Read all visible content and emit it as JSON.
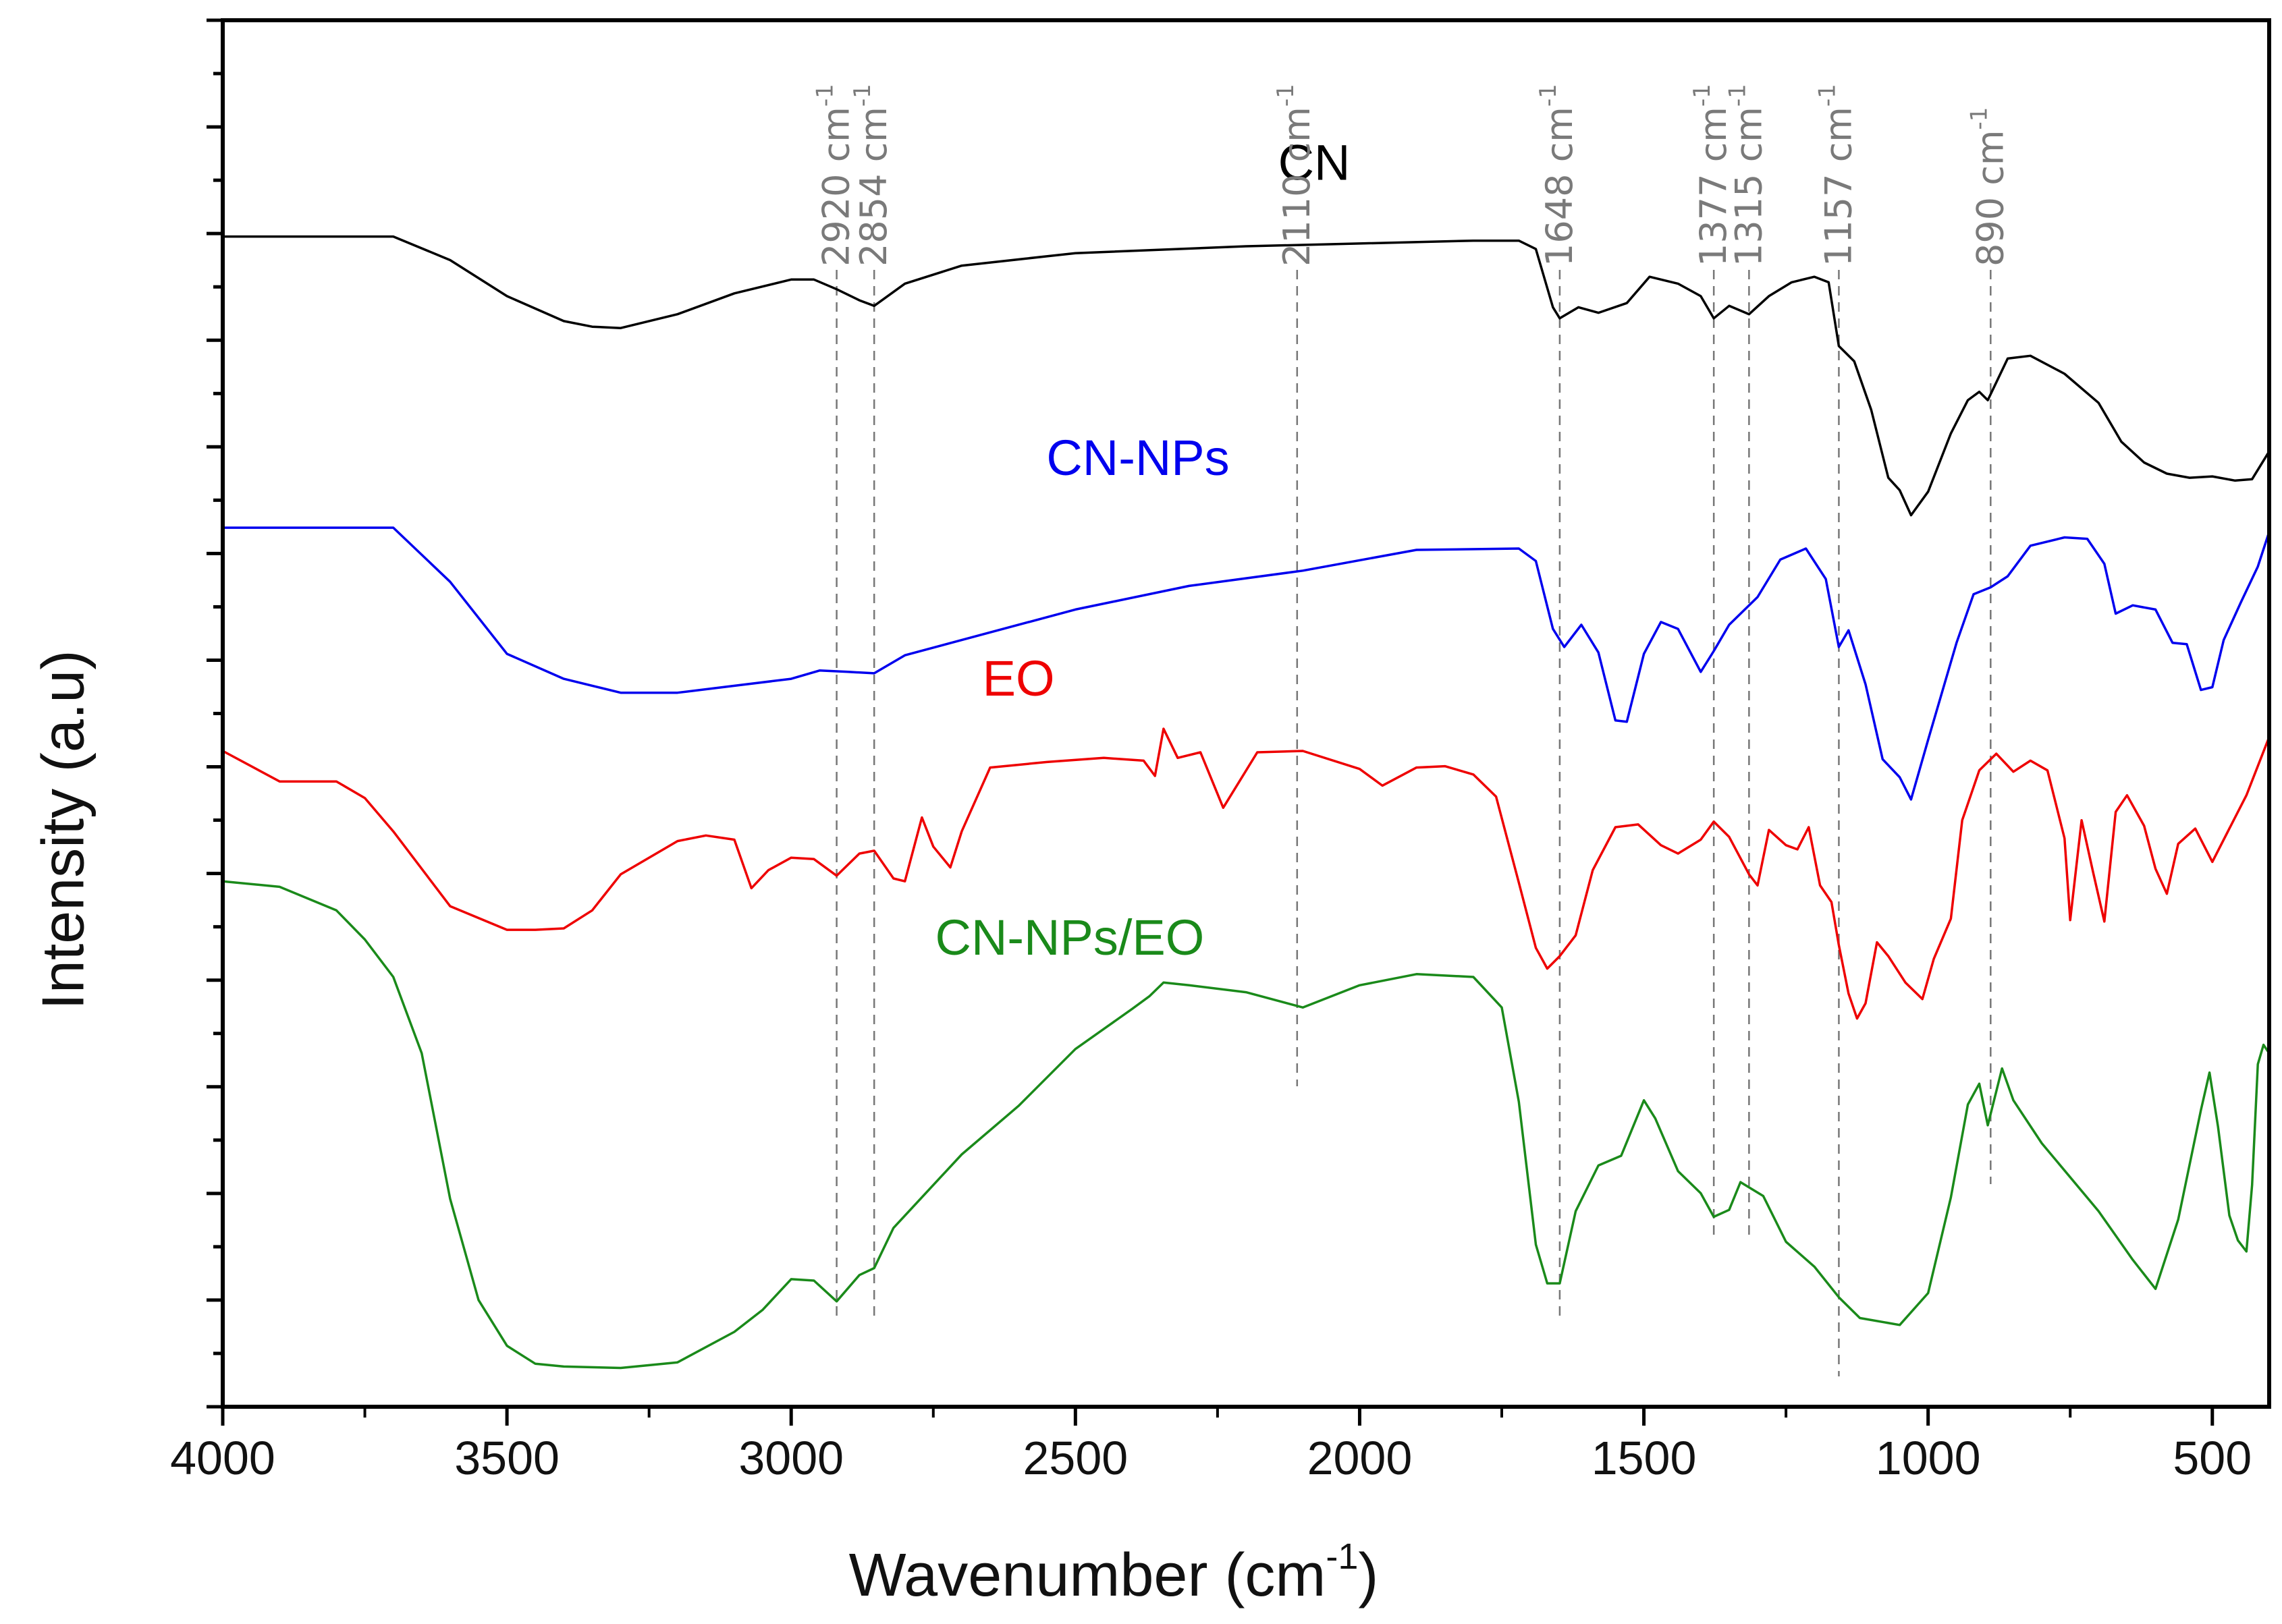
{
  "chart_data": {
    "type": "line",
    "title": "",
    "xlabel": "Wavenumber (cm",
    "xlabel_sup": "-1",
    "xlabel_close": ")",
    "ylabel": "Intensity (a.u)",
    "xlim": [
      4000,
      400
    ],
    "ylim": [
      0,
      100
    ],
    "x_ticks": [
      4000,
      3500,
      3000,
      2500,
      2000,
      1500,
      1000,
      500
    ],
    "x_tick_labels": [
      "4000",
      "3500",
      "3000",
      "2500",
      "2000",
      "1500",
      "1000",
      "500"
    ],
    "y_ticks_unlabeled": true,
    "annotations": [
      {
        "x": 2920,
        "text": "2920 cm",
        "sup": "-1"
      },
      {
        "x": 2854,
        "text": "2854 cm",
        "sup": "-1"
      },
      {
        "x": 2110,
        "text": "2110 cm",
        "sup": "-1"
      },
      {
        "x": 1648,
        "text": "1648 cm",
        "sup": "-1"
      },
      {
        "x": 1377,
        "text": "1377 cm",
        "sup": "-1"
      },
      {
        "x": 1315,
        "text": "1315 cm",
        "sup": "-1"
      },
      {
        "x": 1157,
        "text": "1157 cm",
        "sup": "-1"
      },
      {
        "x": 890,
        "text": "890 cm",
        "sup": "-1"
      }
    ],
    "series": [
      {
        "name": "CN",
        "color": "#000000",
        "points": [
          [
            4000,
            84.4
          ],
          [
            3900,
            84.4
          ],
          [
            3700,
            84.4
          ],
          [
            3600,
            82.7
          ],
          [
            3500,
            80.1
          ],
          [
            3400,
            78.3
          ],
          [
            3350,
            77.9
          ],
          [
            3300,
            77.8
          ],
          [
            3200,
            78.8
          ],
          [
            3100,
            80.3
          ],
          [
            3000,
            81.3
          ],
          [
            2960,
            81.3
          ],
          [
            2920,
            80.6
          ],
          [
            2880,
            79.8
          ],
          [
            2854,
            79.4
          ],
          [
            2800,
            81.0
          ],
          [
            2700,
            82.3
          ],
          [
            2500,
            83.2
          ],
          [
            2200,
            83.7
          ],
          [
            2000,
            83.9
          ],
          [
            1800,
            84.1
          ],
          [
            1720,
            84.1
          ],
          [
            1690,
            83.5
          ],
          [
            1660,
            79.3
          ],
          [
            1648,
            78.5
          ],
          [
            1615,
            79.3
          ],
          [
            1580,
            78.9
          ],
          [
            1530,
            79.6
          ],
          [
            1490,
            81.5
          ],
          [
            1440,
            81.0
          ],
          [
            1400,
            80.1
          ],
          [
            1377,
            78.5
          ],
          [
            1350,
            79.4
          ],
          [
            1315,
            78.8
          ],
          [
            1280,
            80.1
          ],
          [
            1240,
            81.1
          ],
          [
            1200,
            81.5
          ],
          [
            1175,
            81.1
          ],
          [
            1157,
            76.5
          ],
          [
            1130,
            75.4
          ],
          [
            1100,
            71.9
          ],
          [
            1070,
            67.0
          ],
          [
            1050,
            66.1
          ],
          [
            1030,
            64.3
          ],
          [
            1000,
            66.0
          ],
          [
            960,
            70.2
          ],
          [
            930,
            72.6
          ],
          [
            910,
            73.2
          ],
          [
            895,
            72.6
          ],
          [
            860,
            75.6
          ],
          [
            820,
            75.8
          ],
          [
            760,
            74.5
          ],
          [
            700,
            72.4
          ],
          [
            660,
            69.6
          ],
          [
            620,
            68.1
          ],
          [
            580,
            67.3
          ],
          [
            540,
            67.0
          ],
          [
            500,
            67.1
          ],
          [
            460,
            66.8
          ],
          [
            430,
            66.9
          ],
          [
            400,
            68.9
          ]
        ]
      },
      {
        "name": "CN-NPs",
        "color": "#0000ee",
        "points": [
          [
            4000,
            63.4
          ],
          [
            3900,
            63.4
          ],
          [
            3700,
            63.4
          ],
          [
            3600,
            59.5
          ],
          [
            3500,
            54.3
          ],
          [
            3400,
            52.5
          ],
          [
            3300,
            51.5
          ],
          [
            3200,
            51.5
          ],
          [
            3000,
            52.5
          ],
          [
            2950,
            53.1
          ],
          [
            2900,
            53.0
          ],
          [
            2854,
            52.9
          ],
          [
            2800,
            54.2
          ],
          [
            2700,
            55.3
          ],
          [
            2500,
            57.5
          ],
          [
            2300,
            59.2
          ],
          [
            2100,
            60.3
          ],
          [
            1900,
            61.8
          ],
          [
            1720,
            61.9
          ],
          [
            1690,
            61.0
          ],
          [
            1660,
            56.1
          ],
          [
            1640,
            54.8
          ],
          [
            1610,
            56.4
          ],
          [
            1580,
            54.4
          ],
          [
            1550,
            49.5
          ],
          [
            1530,
            49.4
          ],
          [
            1500,
            54.3
          ],
          [
            1470,
            56.6
          ],
          [
            1440,
            56.1
          ],
          [
            1400,
            53.0
          ],
          [
            1377,
            54.5
          ],
          [
            1350,
            56.4
          ],
          [
            1300,
            58.4
          ],
          [
            1260,
            61.1
          ],
          [
            1215,
            61.9
          ],
          [
            1180,
            59.7
          ],
          [
            1157,
            54.8
          ],
          [
            1140,
            56.0
          ],
          [
            1110,
            52.1
          ],
          [
            1080,
            46.7
          ],
          [
            1050,
            45.4
          ],
          [
            1030,
            43.8
          ],
          [
            1000,
            48.1
          ],
          [
            950,
            55.1
          ],
          [
            920,
            58.6
          ],
          [
            890,
            59.1
          ],
          [
            860,
            59.9
          ],
          [
            820,
            62.1
          ],
          [
            760,
            62.7
          ],
          [
            720,
            62.6
          ],
          [
            690,
            60.8
          ],
          [
            670,
            57.2
          ],
          [
            640,
            57.8
          ],
          [
            600,
            57.5
          ],
          [
            570,
            55.1
          ],
          [
            545,
            55.0
          ],
          [
            520,
            51.7
          ],
          [
            500,
            51.9
          ],
          [
            480,
            55.3
          ],
          [
            450,
            58.0
          ],
          [
            420,
            60.6
          ],
          [
            400,
            63.1
          ]
        ]
      },
      {
        "name": "EO",
        "color": "#ee0000",
        "points": [
          [
            4000,
            47.3
          ],
          [
            3900,
            45.1
          ],
          [
            3800,
            45.1
          ],
          [
            3750,
            43.9
          ],
          [
            3700,
            41.5
          ],
          [
            3600,
            36.1
          ],
          [
            3500,
            34.4
          ],
          [
            3450,
            34.4
          ],
          [
            3400,
            34.5
          ],
          [
            3350,
            35.8
          ],
          [
            3300,
            38.4
          ],
          [
            3200,
            40.8
          ],
          [
            3150,
            41.2
          ],
          [
            3100,
            40.9
          ],
          [
            3070,
            37.4
          ],
          [
            3040,
            38.7
          ],
          [
            3000,
            39.6
          ],
          [
            2960,
            39.5
          ],
          [
            2920,
            38.3
          ],
          [
            2880,
            39.9
          ],
          [
            2854,
            40.1
          ],
          [
            2820,
            38.1
          ],
          [
            2800,
            37.9
          ],
          [
            2770,
            42.5
          ],
          [
            2750,
            40.4
          ],
          [
            2720,
            38.9
          ],
          [
            2700,
            41.5
          ],
          [
            2650,
            46.1
          ],
          [
            2550,
            46.5
          ],
          [
            2450,
            46.8
          ],
          [
            2380,
            46.6
          ],
          [
            2360,
            45.5
          ],
          [
            2345,
            48.9
          ],
          [
            2320,
            46.8
          ],
          [
            2280,
            47.2
          ],
          [
            2240,
            43.2
          ],
          [
            2180,
            47.2
          ],
          [
            2100,
            47.3
          ],
          [
            2000,
            46.0
          ],
          [
            1960,
            44.8
          ],
          [
            1900,
            46.1
          ],
          [
            1850,
            46.2
          ],
          [
            1800,
            45.6
          ],
          [
            1760,
            44.0
          ],
          [
            1720,
            37.8
          ],
          [
            1690,
            33.1
          ],
          [
            1670,
            31.6
          ],
          [
            1648,
            32.5
          ],
          [
            1620,
            34.0
          ],
          [
            1590,
            38.7
          ],
          [
            1550,
            41.8
          ],
          [
            1510,
            42.0
          ],
          [
            1470,
            40.5
          ],
          [
            1440,
            39.9
          ],
          [
            1400,
            40.9
          ],
          [
            1377,
            42.2
          ],
          [
            1350,
            41.1
          ],
          [
            1315,
            38.4
          ],
          [
            1300,
            37.6
          ],
          [
            1280,
            41.6
          ],
          [
            1250,
            40.5
          ],
          [
            1230,
            40.2
          ],
          [
            1210,
            41.8
          ],
          [
            1190,
            37.6
          ],
          [
            1170,
            36.4
          ],
          [
            1157,
            33.3
          ],
          [
            1140,
            29.8
          ],
          [
            1125,
            28.0
          ],
          [
            1110,
            29.1
          ],
          [
            1090,
            33.5
          ],
          [
            1070,
            32.5
          ],
          [
            1040,
            30.6
          ],
          [
            1010,
            29.4
          ],
          [
            990,
            32.3
          ],
          [
            960,
            35.2
          ],
          [
            940,
            42.3
          ],
          [
            910,
            45.9
          ],
          [
            880,
            47.1
          ],
          [
            850,
            45.8
          ],
          [
            820,
            46.6
          ],
          [
            790,
            45.9
          ],
          [
            760,
            41.0
          ],
          [
            750,
            35.1
          ],
          [
            730,
            42.3
          ],
          [
            710,
            38.6
          ],
          [
            690,
            35.0
          ],
          [
            670,
            42.9
          ],
          [
            650,
            44.1
          ],
          [
            620,
            41.9
          ],
          [
            600,
            38.8
          ],
          [
            580,
            37.0
          ],
          [
            560,
            40.6
          ],
          [
            530,
            41.7
          ],
          [
            500,
            39.3
          ],
          [
            470,
            41.7
          ],
          [
            440,
            44.1
          ],
          [
            400,
            48.3
          ]
        ]
      },
      {
        "name": "CN-NPs/EO",
        "color": "#1a8a1a",
        "points": [
          [
            4000,
            37.9
          ],
          [
            3900,
            37.5
          ],
          [
            3800,
            35.8
          ],
          [
            3750,
            33.7
          ],
          [
            3700,
            31.0
          ],
          [
            3650,
            25.5
          ],
          [
            3600,
            15.0
          ],
          [
            3550,
            7.7
          ],
          [
            3500,
            4.4
          ],
          [
            3450,
            3.1
          ],
          [
            3400,
            2.9
          ],
          [
            3300,
            2.8
          ],
          [
            3200,
            3.2
          ],
          [
            3100,
            5.4
          ],
          [
            3050,
            7.0
          ],
          [
            3000,
            9.2
          ],
          [
            2960,
            9.1
          ],
          [
            2920,
            7.6
          ],
          [
            2880,
            9.5
          ],
          [
            2854,
            10.0
          ],
          [
            2820,
            12.9
          ],
          [
            2700,
            18.2
          ],
          [
            2600,
            21.7
          ],
          [
            2500,
            25.8
          ],
          [
            2400,
            28.7
          ],
          [
            2370,
            29.6
          ],
          [
            2345,
            30.6
          ],
          [
            2300,
            30.4
          ],
          [
            2200,
            29.9
          ],
          [
            2100,
            28.8
          ],
          [
            2000,
            30.4
          ],
          [
            1900,
            31.2
          ],
          [
            1800,
            31.0
          ],
          [
            1750,
            28.8
          ],
          [
            1720,
            22.0
          ],
          [
            1690,
            11.7
          ],
          [
            1670,
            8.9
          ],
          [
            1648,
            8.9
          ],
          [
            1620,
            14.1
          ],
          [
            1580,
            17.4
          ],
          [
            1540,
            18.1
          ],
          [
            1500,
            22.1
          ],
          [
            1480,
            20.8
          ],
          [
            1440,
            17.0
          ],
          [
            1400,
            15.4
          ],
          [
            1377,
            13.7
          ],
          [
            1350,
            14.2
          ],
          [
            1330,
            16.2
          ],
          [
            1290,
            15.2
          ],
          [
            1250,
            11.9
          ],
          [
            1200,
            10.1
          ],
          [
            1157,
            7.9
          ],
          [
            1120,
            6.4
          ],
          [
            1050,
            5.9
          ],
          [
            1000,
            8.2
          ],
          [
            960,
            15.1
          ],
          [
            930,
            21.8
          ],
          [
            910,
            23.3
          ],
          [
            895,
            20.3
          ],
          [
            870,
            24.4
          ],
          [
            850,
            22.1
          ],
          [
            800,
            19.0
          ],
          [
            700,
            14.1
          ],
          [
            640,
            10.6
          ],
          [
            600,
            8.5
          ],
          [
            560,
            13.5
          ],
          [
            520,
            21.4
          ],
          [
            505,
            24.1
          ],
          [
            490,
            20.2
          ],
          [
            470,
            13.8
          ],
          [
            455,
            12.0
          ],
          [
            440,
            11.2
          ],
          [
            430,
            16.0
          ],
          [
            420,
            24.7
          ],
          [
            410,
            26.1
          ],
          [
            400,
            25.5
          ]
        ]
      }
    ],
    "series_labels": [
      {
        "name": "CN",
        "x": 2080,
        "y": 88.5
      },
      {
        "name": "CN-NPs",
        "x": 2390,
        "y": 67.2
      },
      {
        "name": "EO",
        "x": 2600,
        "y": 51.3
      },
      {
        "name": "CN-NPs/EO",
        "x": 2510,
        "y": 32.6
      }
    ]
  }
}
